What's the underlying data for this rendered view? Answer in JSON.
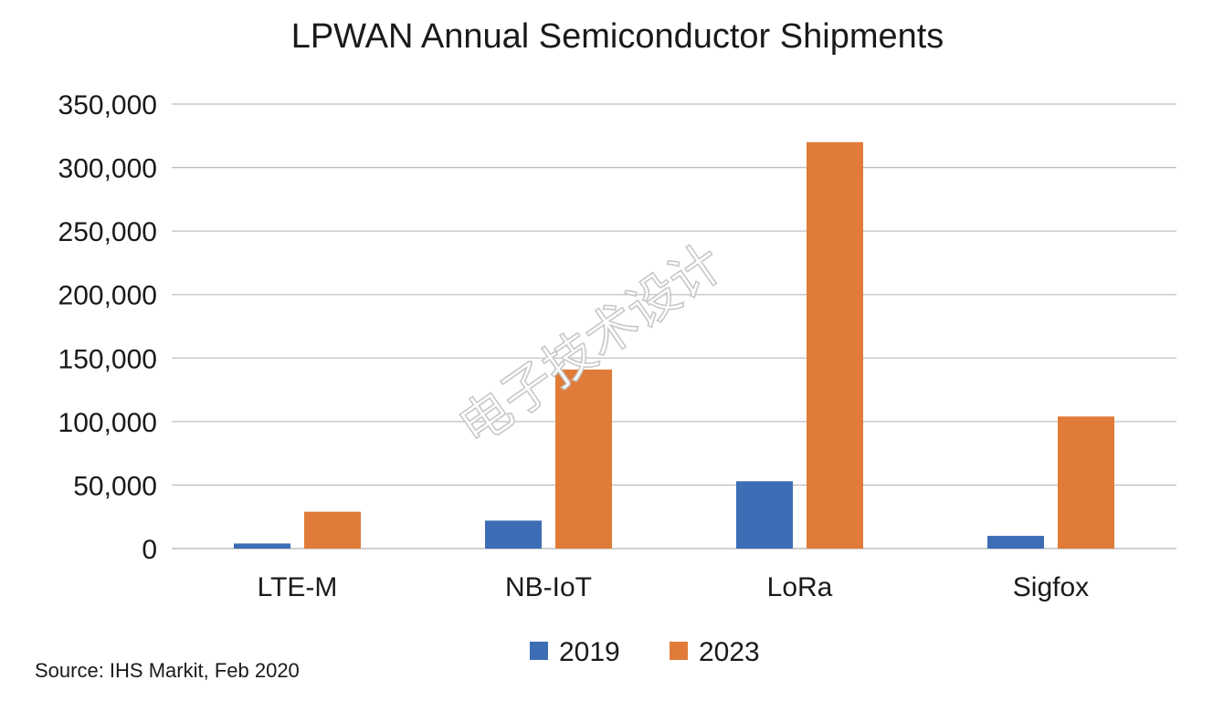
{
  "chart_data": {
    "type": "bar",
    "title": "LPWAN Annual Semiconductor Shipments",
    "categories": [
      "LTE-M",
      "NB-IoT",
      "LoRa",
      "Sigfox"
    ],
    "series": [
      {
        "name": "2019",
        "color": "#3d6db5",
        "values": [
          4000,
          22000,
          53000,
          10000
        ]
      },
      {
        "name": "2023",
        "color": "#e07b39",
        "values": [
          29000,
          141000,
          320000,
          104000
        ]
      }
    ],
    "ylim": [
      0,
      350000
    ],
    "yticks": [
      0,
      50000,
      100000,
      150000,
      200000,
      250000,
      300000,
      350000
    ],
    "ytick_labels": [
      "0",
      "50,000",
      "100,000",
      "150,000",
      "200,000",
      "250,000",
      "300,000",
      "350,000"
    ],
    "grid": true,
    "legend_position": "bottom-center"
  },
  "source": "Source: IHS Markit, Feb 2020",
  "watermark": "电子技术设计",
  "colors": {
    "gridline": "#bfbfbf",
    "axis": "#bfbfbf"
  }
}
